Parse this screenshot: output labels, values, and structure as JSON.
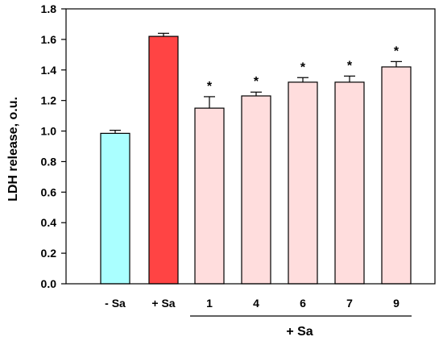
{
  "chart_data": {
    "type": "bar",
    "ylabel": "LDH release, o.u.",
    "ylim": [
      0,
      1.8
    ],
    "yticks": [
      "0.0",
      "0.2",
      "0.4",
      "0.6",
      "0.8",
      "1.0",
      "1.2",
      "1.4",
      "1.6",
      "1.8"
    ],
    "ytick_values": [
      0,
      0.2,
      0.4,
      0.6,
      0.8,
      1.0,
      1.2,
      1.4,
      1.6,
      1.8
    ],
    "categories": [
      "- Sa",
      "+ Sa",
      "1",
      "4",
      "6",
      "7",
      "9"
    ],
    "values": [
      0.985,
      1.62,
      1.15,
      1.23,
      1.32,
      1.32,
      1.42
    ],
    "errors": [
      0.02,
      0.02,
      0.075,
      0.025,
      0.03,
      0.04,
      0.035
    ],
    "significance": [
      "",
      "",
      "*",
      "*",
      "*",
      "*",
      "*"
    ],
    "bar_colors": [
      "#aaffff",
      "#ff4444",
      "#ffdddd",
      "#ffdddd",
      "#ffdddd",
      "#ffdddd",
      "#ffdddd"
    ],
    "group_label": "+ Sa",
    "group_categories": [
      "1",
      "4",
      "6",
      "7",
      "9"
    ],
    "grid": false,
    "legend": "none"
  }
}
